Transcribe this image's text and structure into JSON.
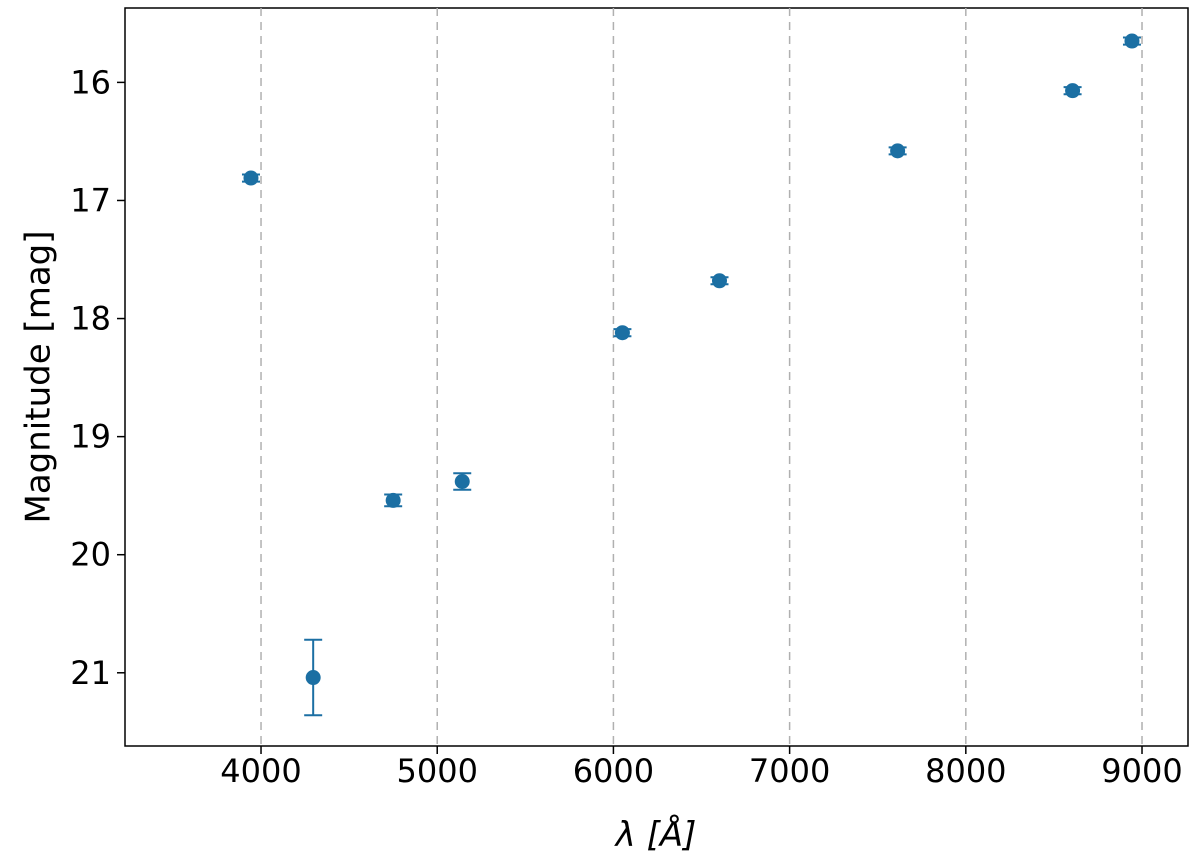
{
  "chart_data": {
    "type": "scatter",
    "x_label": "λ [Å]",
    "y_label": "Magnitude [mag]",
    "series": [
      {
        "name": "Magnitude",
        "color": "#1b6fa3",
        "x": [
          3943,
          4296,
          4750,
          5142,
          6051,
          6602,
          7613,
          8606,
          8943
        ],
        "values": [
          16.81,
          21.04,
          19.54,
          19.38,
          18.12,
          17.68,
          16.58,
          16.07,
          15.65
        ],
        "errors": [
          0.03,
          0.32,
          0.05,
          0.07,
          0.03,
          0.03,
          0.03,
          0.03,
          0.03
        ]
      }
    ],
    "xlim": [
      3228,
      9261
    ],
    "xticks": [
      4000,
      5000,
      6000,
      7000,
      8000,
      9000
    ],
    "ylim": [
      21.62,
      15.37
    ],
    "yticks": [
      16,
      17,
      18,
      19,
      20,
      21
    ],
    "grid": "x"
  }
}
